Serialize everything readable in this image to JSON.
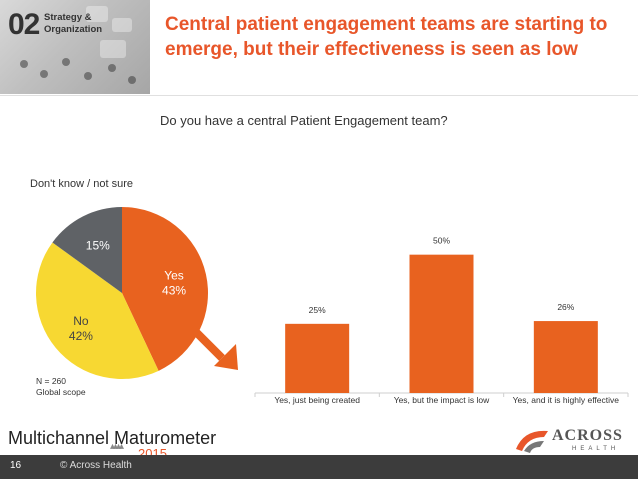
{
  "header": {
    "section_number": "02",
    "section_label_line1": "Strategy &",
    "section_label_line2": "Organization",
    "title": "Central patient engagement teams are starting to emerge, but their effectiveness is seen as low"
  },
  "question": "Do you have a central Patient Engagement team?",
  "sample_note": {
    "line1": "N = 260",
    "line2": "Global scope"
  },
  "colors": {
    "accent": "#e8562a",
    "pie_yes": "#e8621f",
    "pie_no": "#f7d832",
    "pie_dk": "#5f6266",
    "bar": "#e8621f",
    "footer": "#3c3c3c"
  },
  "chart_data": [
    {
      "type": "pie",
      "title": "Don't know / not sure",
      "slices": [
        {
          "label": "Yes",
          "value": 43,
          "value_label": "43%"
        },
        {
          "label": "No",
          "value": 42,
          "value_label": "42%"
        },
        {
          "label": "",
          "value": 15,
          "value_label": "15%"
        }
      ]
    },
    {
      "type": "bar",
      "categories": [
        "Yes, just being created",
        "Yes, but the impact is low",
        "Yes, and it is highly effective"
      ],
      "values": [
        25,
        50,
        26
      ],
      "value_labels": [
        "25%",
        "50%",
        "26%"
      ],
      "ylim": [
        0,
        60
      ]
    }
  ],
  "footer": {
    "logo_text": "Multichannel Maturometer",
    "logo_year": "2015",
    "brand_name": "ACROSS",
    "brand_sub": "HEALTH",
    "page_number": "16",
    "copyright": "© Across Health"
  }
}
